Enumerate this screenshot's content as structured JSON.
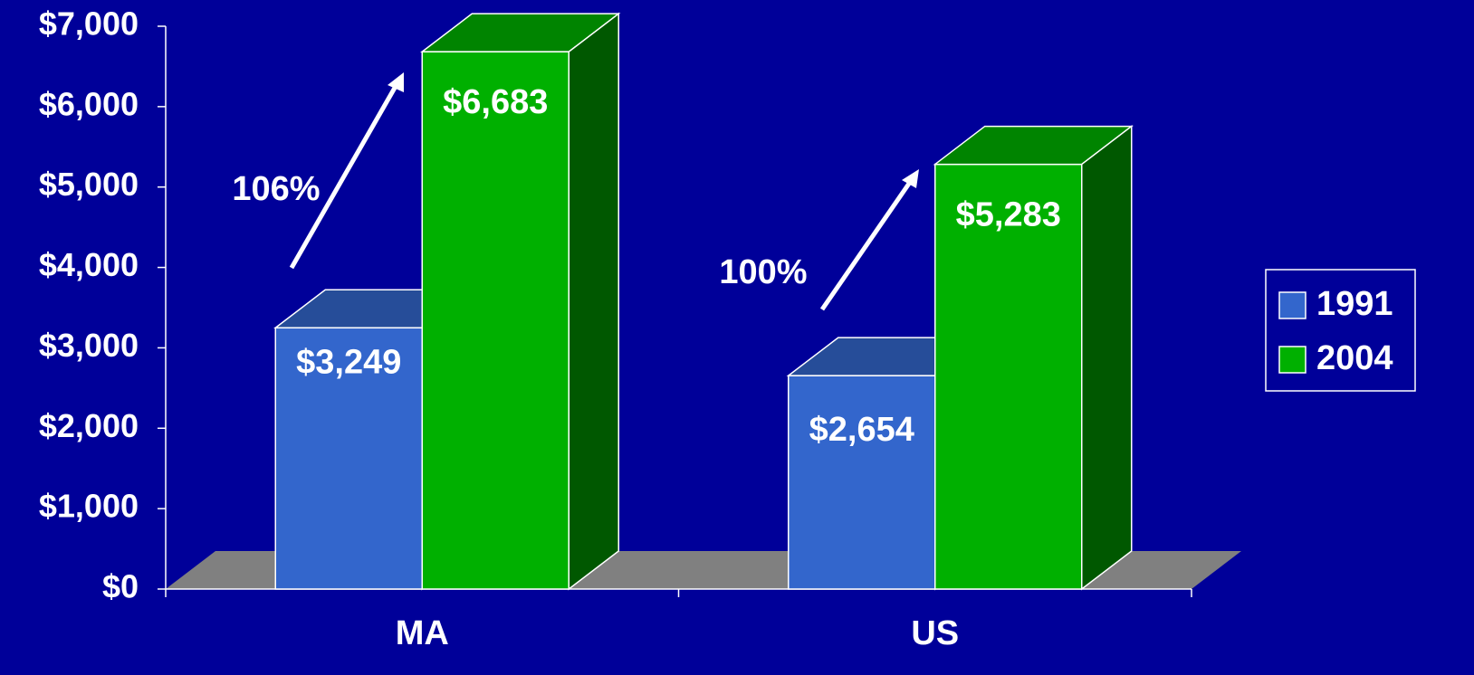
{
  "chart_data": {
    "type": "bar3d",
    "categories": [
      "MA",
      "US"
    ],
    "series": [
      {
        "name": "1991",
        "color": "#3366cc",
        "values": [
          3249,
          2654
        ],
        "value_labels": [
          "$3,249",
          "$2,654"
        ]
      },
      {
        "name": "2004",
        "color": "#00b000",
        "values": [
          6683,
          5283
        ],
        "value_labels": [
          "$6,683",
          "$5,283"
        ]
      }
    ],
    "annotations": [
      "106%",
      "100%"
    ],
    "ylim": [
      0,
      7000
    ],
    "yticks": [
      {
        "value": 0,
        "label": "$0"
      },
      {
        "value": 1000,
        "label": "$1,000"
      },
      {
        "value": 2000,
        "label": "$2,000"
      },
      {
        "value": 3000,
        "label": "$3,000"
      },
      {
        "value": 4000,
        "label": "$4,000"
      },
      {
        "value": 5000,
        "label": "$5,000"
      },
      {
        "value": 6000,
        "label": "$6,000"
      },
      {
        "value": 7000,
        "label": "$7,000"
      }
    ],
    "grid": false,
    "legend": "right"
  }
}
